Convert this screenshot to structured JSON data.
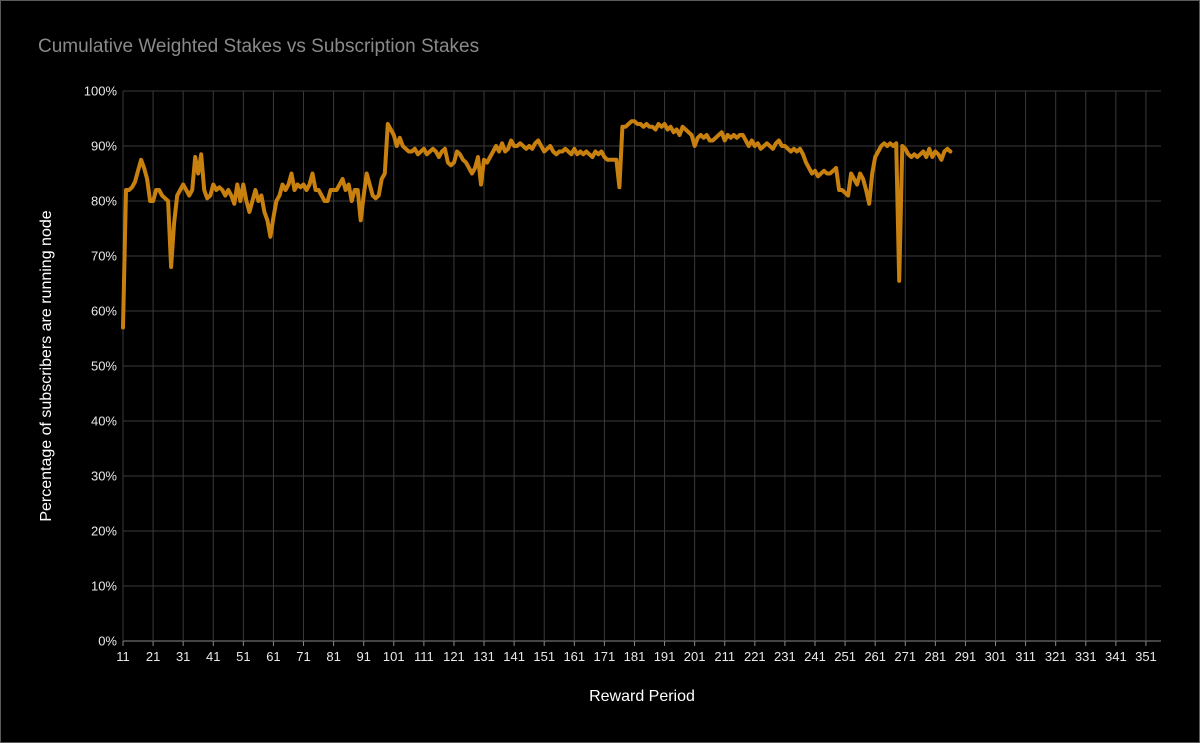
{
  "chart_data": {
    "type": "line",
    "title": "Cumulative Weighted Stakes vs Subscription Stakes",
    "xlabel": "Reward Period",
    "ylabel": "Percentage of subscribers are running node",
    "xlim": [
      11,
      356
    ],
    "ylim": [
      0,
      100
    ],
    "y_ticks": [
      "0%",
      "10%",
      "20%",
      "30%",
      "40%",
      "50%",
      "60%",
      "70%",
      "80%",
      "90%",
      "100%"
    ],
    "x_ticks": [
      "11",
      "21",
      "31",
      "41",
      "51",
      "61",
      "71",
      "81",
      "91",
      "101",
      "111",
      "121",
      "131",
      "141",
      "151",
      "161",
      "171",
      "181",
      "191",
      "201",
      "211",
      "221",
      "231",
      "241",
      "251",
      "261",
      "271",
      "281",
      "291",
      "301",
      "311",
      "321",
      "331",
      "341",
      "351"
    ],
    "grid": true,
    "legend": "none",
    "colors": {
      "line": "#c8800f",
      "grid": "#3a3a3a",
      "background": "#000000"
    },
    "series": [
      {
        "points": [
          [
            11,
            57
          ],
          [
            12,
            82
          ],
          [
            13,
            82
          ],
          [
            14,
            82.5
          ],
          [
            15,
            83.5
          ],
          [
            16,
            85.5
          ],
          [
            17,
            87.5
          ],
          [
            18,
            86
          ],
          [
            19,
            84
          ],
          [
            20,
            80
          ],
          [
            21,
            80
          ],
          [
            22,
            82
          ],
          [
            23,
            82
          ],
          [
            24,
            81
          ],
          [
            25,
            80.5
          ],
          [
            26,
            80
          ],
          [
            27,
            68
          ],
          [
            28,
            76
          ],
          [
            29,
            81
          ],
          [
            30,
            82
          ],
          [
            31,
            83
          ],
          [
            32,
            82
          ],
          [
            33,
            81
          ],
          [
            34,
            82
          ],
          [
            35,
            88
          ],
          [
            36,
            85
          ],
          [
            37,
            88.5
          ],
          [
            38,
            82
          ],
          [
            39,
            80.5
          ],
          [
            40,
            81
          ],
          [
            41,
            83
          ],
          [
            42,
            82
          ],
          [
            43,
            82.5
          ],
          [
            44,
            82
          ],
          [
            45,
            81
          ],
          [
            46,
            82
          ],
          [
            47,
            81
          ],
          [
            48,
            79.5
          ],
          [
            49,
            83
          ],
          [
            50,
            80
          ],
          [
            51,
            83
          ],
          [
            52,
            80
          ],
          [
            53,
            78
          ],
          [
            54,
            80
          ],
          [
            55,
            82
          ],
          [
            56,
            80
          ],
          [
            57,
            81
          ],
          [
            58,
            78
          ],
          [
            59,
            76.5
          ],
          [
            60,
            73.5
          ],
          [
            61,
            77
          ],
          [
            62,
            80
          ],
          [
            63,
            81
          ],
          [
            64,
            83
          ],
          [
            65,
            82
          ],
          [
            66,
            83
          ],
          [
            67,
            85
          ],
          [
            68,
            82
          ],
          [
            69,
            83
          ],
          [
            70,
            82.5
          ],
          [
            71,
            83
          ],
          [
            72,
            82
          ],
          [
            73,
            83
          ],
          [
            74,
            85
          ],
          [
            75,
            82
          ],
          [
            76,
            82
          ],
          [
            77,
            81
          ],
          [
            78,
            80
          ],
          [
            79,
            80
          ],
          [
            80,
            82
          ],
          [
            81,
            82
          ],
          [
            82,
            82
          ],
          [
            83,
            83
          ],
          [
            84,
            84
          ],
          [
            85,
            82
          ],
          [
            86,
            83
          ],
          [
            87,
            80
          ],
          [
            88,
            82
          ],
          [
            89,
            82
          ],
          [
            90,
            76.5
          ],
          [
            91,
            81
          ],
          [
            92,
            85
          ],
          [
            93,
            83
          ],
          [
            94,
            81
          ],
          [
            95,
            80.5
          ],
          [
            96,
            81
          ],
          [
            97,
            84
          ],
          [
            98,
            85
          ],
          [
            99,
            94
          ],
          [
            100,
            93
          ],
          [
            101,
            92
          ],
          [
            102,
            90
          ],
          [
            103,
            91.5
          ],
          [
            104,
            90
          ],
          [
            105,
            89.5
          ],
          [
            106,
            89
          ],
          [
            107,
            89
          ],
          [
            108,
            89.5
          ],
          [
            109,
            88.5
          ],
          [
            110,
            89
          ],
          [
            111,
            89.5
          ],
          [
            112,
            88.5
          ],
          [
            113,
            89
          ],
          [
            114,
            89.5
          ],
          [
            115,
            89
          ],
          [
            116,
            88
          ],
          [
            117,
            89
          ],
          [
            118,
            89.5
          ],
          [
            119,
            87
          ],
          [
            120,
            86.5
          ],
          [
            121,
            87
          ],
          [
            122,
            89
          ],
          [
            123,
            88.5
          ],
          [
            124,
            87.5
          ],
          [
            125,
            87
          ],
          [
            126,
            86
          ],
          [
            127,
            85
          ],
          [
            128,
            86
          ],
          [
            129,
            88
          ],
          [
            130,
            83
          ],
          [
            131,
            87.5
          ],
          [
            132,
            87
          ],
          [
            133,
            88
          ],
          [
            134,
            89
          ],
          [
            135,
            90
          ],
          [
            136,
            89
          ],
          [
            137,
            90.5
          ],
          [
            138,
            89
          ],
          [
            139,
            89.5
          ],
          [
            140,
            91
          ],
          [
            141,
            90
          ],
          [
            142,
            90
          ],
          [
            143,
            90.5
          ],
          [
            144,
            90
          ],
          [
            145,
            89.5
          ],
          [
            146,
            90
          ],
          [
            147,
            89.5
          ],
          [
            148,
            90.5
          ],
          [
            149,
            91
          ],
          [
            150,
            90
          ],
          [
            151,
            89
          ],
          [
            152,
            89.5
          ],
          [
            153,
            90
          ],
          [
            154,
            89
          ],
          [
            155,
            88.5
          ],
          [
            156,
            89
          ],
          [
            157,
            89
          ],
          [
            158,
            89.5
          ],
          [
            159,
            89
          ],
          [
            160,
            88.5
          ],
          [
            161,
            89.5
          ],
          [
            162,
            88.5
          ],
          [
            163,
            89
          ],
          [
            164,
            88.5
          ],
          [
            165,
            89
          ],
          [
            166,
            88.5
          ],
          [
            167,
            88
          ],
          [
            168,
            89
          ],
          [
            169,
            88.5
          ],
          [
            170,
            89
          ],
          [
            171,
            88
          ],
          [
            172,
            87.5
          ],
          [
            173,
            87.5
          ],
          [
            174,
            87.5
          ],
          [
            175,
            87.5
          ],
          [
            176,
            82.5
          ],
          [
            177,
            93.5
          ],
          [
            178,
            93.5
          ],
          [
            179,
            94
          ],
          [
            180,
            94.5
          ],
          [
            181,
            94.5
          ],
          [
            182,
            94
          ],
          [
            183,
            94
          ],
          [
            184,
            93.5
          ],
          [
            185,
            94
          ],
          [
            186,
            93.5
          ],
          [
            187,
            93.5
          ],
          [
            188,
            93
          ],
          [
            189,
            94
          ],
          [
            190,
            93.5
          ],
          [
            191,
            94
          ],
          [
            192,
            93
          ],
          [
            193,
            93.5
          ],
          [
            194,
            92.5
          ],
          [
            195,
            93
          ],
          [
            196,
            92
          ],
          [
            197,
            93.5
          ],
          [
            198,
            93
          ],
          [
            199,
            92.5
          ],
          [
            200,
            92
          ],
          [
            201,
            90
          ],
          [
            202,
            91.5
          ],
          [
            203,
            92
          ],
          [
            204,
            91.5
          ],
          [
            205,
            92
          ],
          [
            206,
            91
          ],
          [
            207,
            91
          ],
          [
            208,
            91.5
          ],
          [
            209,
            92
          ],
          [
            210,
            92.5
          ],
          [
            211,
            91
          ],
          [
            212,
            92
          ],
          [
            213,
            91.5
          ],
          [
            214,
            92
          ],
          [
            215,
            91.5
          ],
          [
            216,
            92
          ],
          [
            217,
            92
          ],
          [
            218,
            91
          ],
          [
            219,
            90
          ],
          [
            220,
            91
          ],
          [
            221,
            90
          ],
          [
            222,
            90.5
          ],
          [
            223,
            89.5
          ],
          [
            224,
            90
          ],
          [
            225,
            90.5
          ],
          [
            226,
            90
          ],
          [
            227,
            89.5
          ],
          [
            228,
            90.5
          ],
          [
            229,
            91
          ],
          [
            230,
            90
          ],
          [
            231,
            90
          ],
          [
            232,
            89.5
          ],
          [
            233,
            89
          ],
          [
            234,
            89.5
          ],
          [
            235,
            89
          ],
          [
            236,
            89.5
          ],
          [
            237,
            88.5
          ],
          [
            238,
            87
          ],
          [
            239,
            86
          ],
          [
            240,
            85
          ],
          [
            241,
            85.5
          ],
          [
            242,
            84.5
          ],
          [
            243,
            85
          ],
          [
            244,
            85.5
          ],
          [
            245,
            85
          ],
          [
            246,
            85
          ],
          [
            247,
            85.5
          ],
          [
            248,
            86
          ],
          [
            249,
            82
          ],
          [
            250,
            82
          ],
          [
            251,
            81.5
          ],
          [
            252,
            81
          ],
          [
            253,
            85
          ],
          [
            254,
            84
          ],
          [
            255,
            83
          ],
          [
            256,
            85
          ],
          [
            257,
            84
          ],
          [
            258,
            82
          ],
          [
            259,
            79.5
          ],
          [
            260,
            85
          ],
          [
            261,
            88
          ],
          [
            262,
            89
          ],
          [
            263,
            90
          ],
          [
            264,
            90.5
          ],
          [
            265,
            90
          ],
          [
            266,
            90.5
          ],
          [
            267,
            90
          ],
          [
            268,
            90.5
          ],
          [
            269,
            65.5
          ],
          [
            270,
            90
          ],
          [
            271,
            89.5
          ],
          [
            272,
            88.5
          ],
          [
            273,
            88
          ],
          [
            274,
            88.5
          ],
          [
            275,
            88
          ],
          [
            276,
            88.5
          ],
          [
            277,
            89
          ],
          [
            278,
            88
          ],
          [
            279,
            89.5
          ],
          [
            280,
            88
          ],
          [
            281,
            89
          ],
          [
            282,
            88.5
          ],
          [
            283,
            87.5
          ],
          [
            284,
            89
          ],
          [
            285,
            89.5
          ],
          [
            286,
            89
          ]
        ]
      }
    ]
  }
}
